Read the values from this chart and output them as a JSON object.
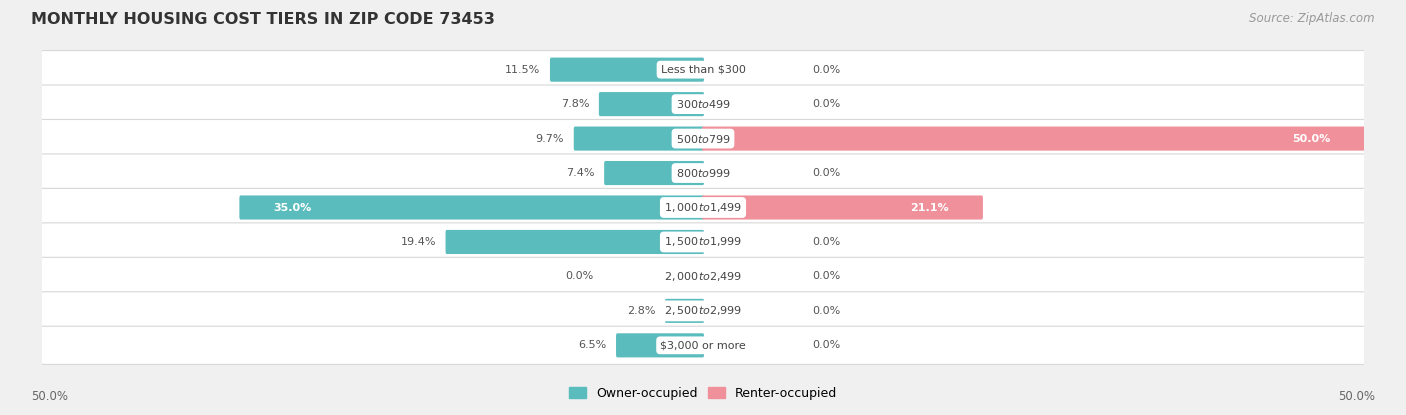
{
  "title": "MONTHLY HOUSING COST TIERS IN ZIP CODE 73453",
  "source": "Source: ZipAtlas.com",
  "categories": [
    "Less than $300",
    "$300 to $499",
    "$500 to $799",
    "$800 to $999",
    "$1,000 to $1,499",
    "$1,500 to $1,999",
    "$2,000 to $2,499",
    "$2,500 to $2,999",
    "$3,000 or more"
  ],
  "owner_values": [
    11.5,
    7.8,
    9.7,
    7.4,
    35.0,
    19.4,
    0.0,
    2.8,
    6.5
  ],
  "renter_values": [
    0.0,
    0.0,
    50.0,
    0.0,
    21.1,
    0.0,
    0.0,
    0.0,
    0.0
  ],
  "owner_color": "#5bbcbd",
  "renter_color": "#f0909b",
  "max_value": 50.0,
  "axis_label_left": "50.0%",
  "axis_label_right": "50.0%",
  "bg_color": "#f0f0f0",
  "row_bg_color": "#ffffff",
  "label_color_outside": "#555555",
  "center_label_color": "#444444",
  "inside_label_color": "#ffffff"
}
